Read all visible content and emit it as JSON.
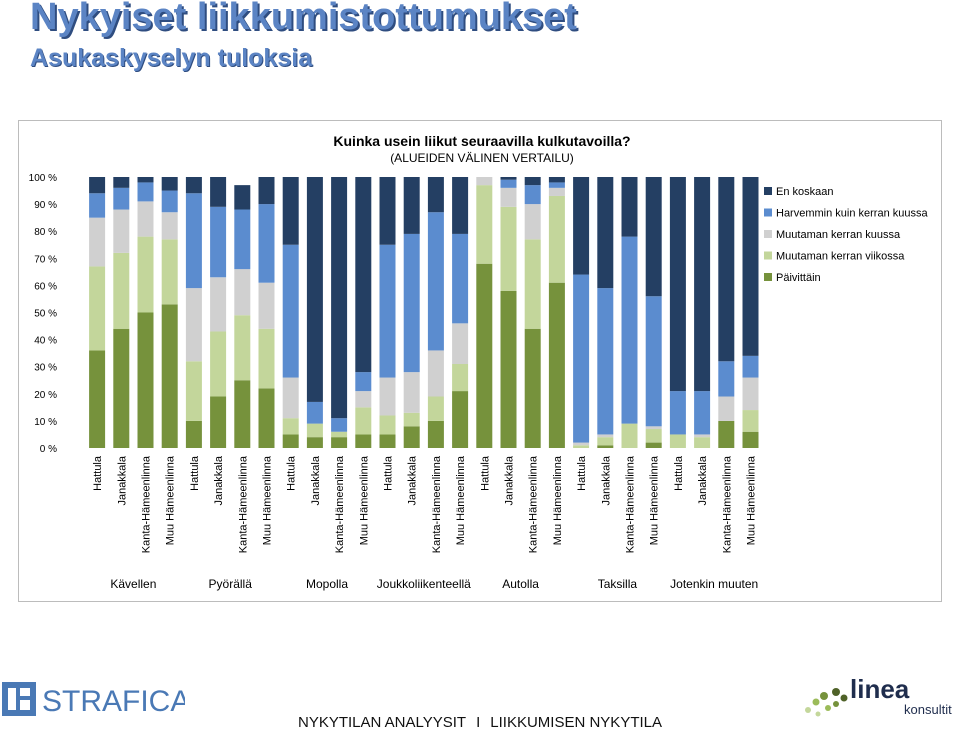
{
  "header": {
    "title": "Nykyiset liikkumistottumukset",
    "subtitle": "Asukaskyselyn tuloksia"
  },
  "footer": {
    "left": "NYKYTILAN ANALYYSIT",
    "separator": "I",
    "right": "LIIKKUMISEN NYKYTILA"
  },
  "logos": {
    "strafica": "STRAFICA",
    "linea": "linea",
    "konsultit": "konsultit"
  },
  "chart_data": {
    "type": "bar",
    "stacked": true,
    "title": "Kuinka usein liikut seuraavilla kulkutavoilla?",
    "subtitle": "(ALUEIDEN VÄLINEN VERTAILU)",
    "ylim": [
      0,
      100
    ],
    "yticks": [
      "0 %",
      "10 %",
      "20 %",
      "30 %",
      "40 %",
      "50 %",
      "60 %",
      "70 %",
      "80 %",
      "90 %",
      "100 %"
    ],
    "grid": false,
    "legend_position": "right",
    "groups": [
      "Kävellen",
      "Pyörällä",
      "Mopolla",
      "Joukkoliikenteellä",
      "Autolla",
      "Taksilla",
      "Jotenkin muuten"
    ],
    "categories": [
      "Hattula",
      "Janakkala",
      "Kanta-Hämeenlinna",
      "Muu Hämeenlinna",
      "Hattula",
      "Janakkala",
      "Kanta-Hämeenlinna",
      "Muu Hämeenlinna",
      "Hattula",
      "Janakkala",
      "Kanta-Hämeenlinna",
      "Muu Hämeenlinna",
      "Hattula",
      "Janakkala",
      "Kanta-Hämeenlinna",
      "Muu Hämeenlinna",
      "Hattula",
      "Janakkala",
      "Kanta-Hämeenlinna",
      "Muu Hämeenlinna",
      "Hattula",
      "Janakkala",
      "Kanta-Hämeenlinna",
      "Muu Hämeenlinna",
      "Hattula",
      "Janakkala",
      "Kanta-Hämeenlinna",
      "Muu Hämeenlinna"
    ],
    "series": [
      {
        "name": "Päivittäin",
        "color": "#76923c",
        "values": [
          36,
          44,
          50,
          53,
          10,
          19,
          25,
          22,
          5,
          4,
          4,
          5,
          5,
          8,
          10,
          21,
          68,
          58,
          44,
          61,
          0,
          1,
          0,
          2,
          0,
          0,
          10,
          6
        ]
      },
      {
        "name": "Muutaman kerran viikossa",
        "color": "#c3d69b",
        "values": [
          31,
          28,
          28,
          24,
          22,
          24,
          24,
          22,
          6,
          5,
          2,
          10,
          7,
          5,
          9,
          10,
          29,
          31,
          33,
          32,
          1,
          3,
          9,
          5,
          5,
          4,
          0,
          8
        ]
      },
      {
        "name": "Muutaman kerran kuussa",
        "color": "#d0d0d0",
        "values": [
          18,
          16,
          13,
          10,
          27,
          20,
          17,
          17,
          15,
          0,
          0,
          6,
          14,
          15,
          17,
          15,
          3,
          7,
          13,
          3,
          1,
          1,
          0,
          1,
          0,
          1,
          9,
          12
        ]
      },
      {
        "name": "Harvemmin kuin kerran kuussa",
        "color": "#5b8ccf",
        "values": [
          9,
          8,
          7,
          8,
          35,
          26,
          22,
          29,
          49,
          8,
          5,
          7,
          49,
          51,
          51,
          33,
          0,
          3,
          7,
          2,
          62,
          54,
          69,
          48,
          16,
          16,
          13,
          8
        ]
      },
      {
        "name": "En koskaan",
        "color": "#243f63",
        "values": [
          6,
          4,
          2,
          5,
          6,
          11,
          9,
          10,
          25,
          83,
          89,
          72,
          25,
          21,
          13,
          21,
          0,
          1,
          3,
          2,
          36,
          41,
          22,
          44,
          79,
          79,
          68,
          66
        ]
      }
    ]
  }
}
